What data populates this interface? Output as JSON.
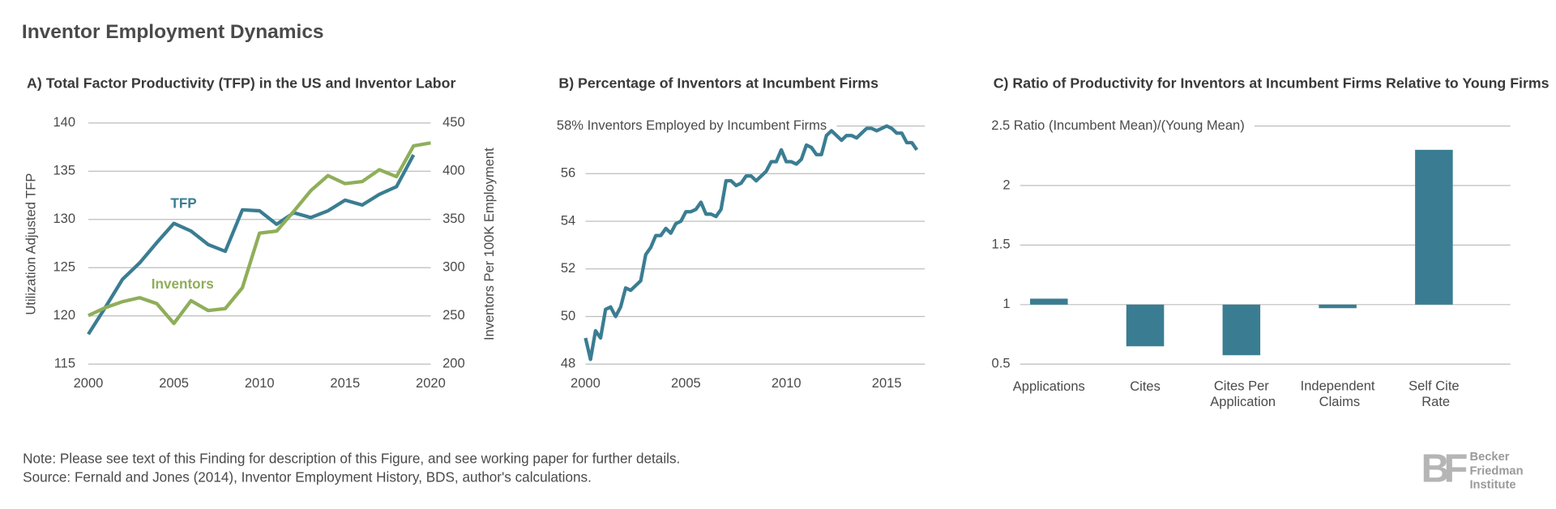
{
  "title": "Inventor Employment Dynamics",
  "chart_data": [
    {
      "type": "line",
      "title": "A)  Total Factor Productivity (TFP) in the US and Inventor Labor",
      "ylabel": "Utilization Adjusted TFP",
      "y2label": "Inventors Per 100K Employment",
      "x": [
        2000,
        2001,
        2002,
        2003,
        2004,
        2005,
        2006,
        2007,
        2008,
        2009,
        2010,
        2011,
        2012,
        2013,
        2014,
        2015,
        2016,
        2017,
        2018,
        2019,
        2020
      ],
      "series": [
        {
          "name": "TFP",
          "color": "#3a7d92",
          "values": [
            118.1,
            120.9,
            123.8,
            125.5,
            127.6,
            129.6,
            128.8,
            127.4,
            126.7,
            131.0,
            130.9,
            129.5,
            130.7,
            130.2,
            130.9,
            132.0,
            131.5,
            132.6,
            133.4,
            136.7,
            null
          ]
        },
        {
          "name": "Inventors",
          "color": "#8fae5a",
          "axis": "y2",
          "values": [
            250.4,
            258.6,
            264.8,
            268.9,
            262.8,
            242.2,
            265.8,
            255.6,
            257.6,
            279.2,
            335.8,
            337.9,
            358.4,
            380.0,
            395.5,
            387.2,
            389.3,
            401.6,
            394.4,
            426.3,
            429.4
          ]
        }
      ],
      "xlim": [
        2000,
        2020
      ],
      "xticks": [
        2000,
        2005,
        2010,
        2015,
        2020
      ],
      "ylim": [
        115,
        140
      ],
      "yticks": [
        115,
        120,
        125,
        130,
        135,
        140
      ],
      "y2lim": [
        200,
        450
      ],
      "y2ticks": [
        200,
        250,
        300,
        350,
        400,
        450
      ],
      "grid": true
    },
    {
      "type": "line",
      "title": "B) Percentage of Inventors at Incumbent Firms",
      "x": [
        2000,
        2000.25,
        2000.5,
        2000.75,
        2001,
        2001.25,
        2001.5,
        2001.75,
        2002,
        2002.25,
        2002.5,
        2002.75,
        2003,
        2003.25,
        2003.5,
        2003.75,
        2004,
        2004.25,
        2004.5,
        2004.75,
        2005,
        2005.25,
        2005.5,
        2005.75,
        2006,
        2006.25,
        2006.5,
        2006.75,
        2007,
        2007.25,
        2007.5,
        2007.75,
        2008,
        2008.25,
        2008.5,
        2008.75,
        2009,
        2009.25,
        2009.5,
        2009.75,
        2010,
        2010.25,
        2010.5,
        2010.75,
        2011,
        2011.25,
        2011.5,
        2011.75,
        2012,
        2012.25,
        2012.5,
        2012.75,
        2013,
        2013.25,
        2013.5,
        2013.75,
        2014,
        2014.25,
        2014.5,
        2014.75,
        2015,
        2015.25,
        2015.5,
        2015.75,
        2016,
        2016.25,
        2016.5
      ],
      "series": [
        {
          "name": "Incumbent share",
          "color": "#3a7d92",
          "values": [
            49.1,
            48.2,
            49.4,
            49.1,
            50.3,
            50.4,
            50.0,
            50.4,
            51.2,
            51.1,
            51.3,
            51.5,
            52.6,
            52.9,
            53.4,
            53.4,
            53.7,
            53.5,
            53.9,
            54.0,
            54.4,
            54.4,
            54.5,
            54.8,
            54.3,
            54.3,
            54.2,
            54.5,
            55.7,
            55.7,
            55.5,
            55.6,
            55.9,
            55.9,
            55.7,
            55.9,
            56.1,
            56.5,
            56.5,
            57.0,
            56.5,
            56.5,
            56.4,
            56.6,
            57.2,
            57.1,
            56.8,
            56.8,
            57.6,
            57.8,
            57.6,
            57.4,
            57.6,
            57.6,
            57.5,
            57.7,
            57.9,
            57.9,
            57.8,
            57.9,
            58.0,
            57.9,
            57.7,
            57.7,
            57.3,
            57.3,
            57.0
          ]
        }
      ],
      "xlim": [
        2000,
        2016.9
      ],
      "xticks": [
        2000,
        2005,
        2010,
        2015
      ],
      "ylim": [
        48,
        58
      ],
      "yticks": [
        48,
        50,
        52,
        54,
        56,
        {
          "value": 58,
          "label": "58% Inventors Employed by Incumbent Firms"
        }
      ],
      "grid": true
    },
    {
      "type": "bar",
      "title": "C) Ratio of Productivity for Inventors at Incumbent Firms Relative to Young Firms",
      "categories": [
        "Applications",
        "Cites",
        "Cites Per Application",
        "Independent Claims",
        "Self Cite Rate"
      ],
      "values": [
        1.05,
        0.65,
        0.575,
        0.97,
        2.3
      ],
      "color": "#3a7d92",
      "baseline": 1,
      "ylim": [
        0.5,
        2.5
      ],
      "yticks": [
        0.5,
        1,
        1.5,
        2,
        {
          "value": 2.5,
          "label": "2.5 Ratio (Incumbent Mean)/(Young Mean)"
        }
      ],
      "grid": true
    }
  ],
  "notes": [
    "Note: Please see text of this Finding for description of this Figure, and see working paper for further details.",
    "Source: Fernald and Jones (2014), Inventor Employment History, BDS, author's calculations."
  ],
  "logo": {
    "mark": "BF",
    "lines": [
      "Becker",
      "Friedman",
      "Institute"
    ]
  }
}
